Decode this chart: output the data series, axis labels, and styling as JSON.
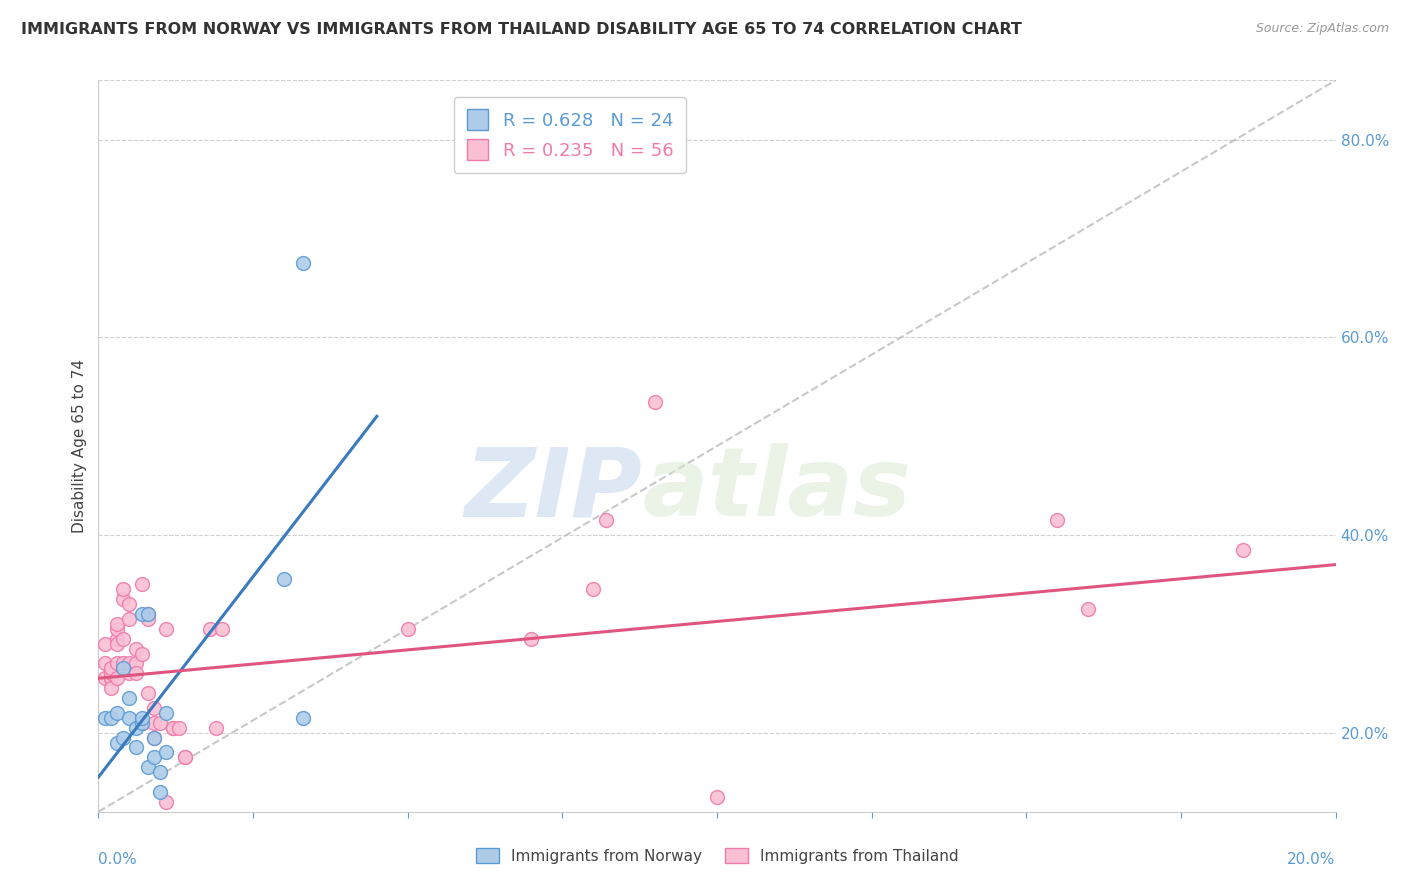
{
  "title": "IMMIGRANTS FROM NORWAY VS IMMIGRANTS FROM THAILAND DISABILITY AGE 65 TO 74 CORRELATION CHART",
  "source": "Source: ZipAtlas.com",
  "ylabel": "Disability Age 65 to 74",
  "watermark_zip": "ZIP",
  "watermark_atlas": "atlas",
  "legend_entries": [
    {
      "r_label": "R = 0.628",
      "n_label": "N = 24",
      "color": "#5b9bd5"
    },
    {
      "r_label": "R = 0.235",
      "n_label": "N = 56",
      "color": "#f07aab"
    }
  ],
  "bottom_legend": [
    "Immigrants from Norway",
    "Immigrants from Thailand"
  ],
  "xlim": [
    0.0,
    0.2
  ],
  "ylim": [
    0.12,
    0.86
  ],
  "xtick_count": 9,
  "yticks_right": [
    0.2,
    0.4,
    0.6,
    0.8
  ],
  "norway_color": "#aecce8",
  "thailand_color": "#f9c0d4",
  "norway_edge_color": "#5b9bd5",
  "thailand_edge_color": "#f07aab",
  "norway_scatter": [
    [
      0.001,
      0.215
    ],
    [
      0.002,
      0.215
    ],
    [
      0.003,
      0.22
    ],
    [
      0.003,
      0.19
    ],
    [
      0.004,
      0.265
    ],
    [
      0.004,
      0.195
    ],
    [
      0.005,
      0.215
    ],
    [
      0.005,
      0.235
    ],
    [
      0.006,
      0.185
    ],
    [
      0.006,
      0.205
    ],
    [
      0.007,
      0.21
    ],
    [
      0.007,
      0.215
    ],
    [
      0.007,
      0.32
    ],
    [
      0.008,
      0.32
    ],
    [
      0.008,
      0.165
    ],
    [
      0.009,
      0.175
    ],
    [
      0.009,
      0.195
    ],
    [
      0.01,
      0.16
    ],
    [
      0.01,
      0.14
    ],
    [
      0.011,
      0.18
    ],
    [
      0.011,
      0.22
    ],
    [
      0.03,
      0.355
    ],
    [
      0.033,
      0.675
    ],
    [
      0.033,
      0.215
    ]
  ],
  "thailand_scatter": [
    [
      0.001,
      0.255
    ],
    [
      0.001,
      0.27
    ],
    [
      0.001,
      0.29
    ],
    [
      0.002,
      0.26
    ],
    [
      0.002,
      0.255
    ],
    [
      0.002,
      0.255
    ],
    [
      0.002,
      0.245
    ],
    [
      0.002,
      0.26
    ],
    [
      0.002,
      0.265
    ],
    [
      0.003,
      0.255
    ],
    [
      0.003,
      0.27
    ],
    [
      0.003,
      0.295
    ],
    [
      0.003,
      0.305
    ],
    [
      0.003,
      0.31
    ],
    [
      0.003,
      0.29
    ],
    [
      0.004,
      0.335
    ],
    [
      0.004,
      0.345
    ],
    [
      0.004,
      0.295
    ],
    [
      0.004,
      0.27
    ],
    [
      0.005,
      0.315
    ],
    [
      0.005,
      0.33
    ],
    [
      0.005,
      0.26
    ],
    [
      0.005,
      0.27
    ],
    [
      0.006,
      0.27
    ],
    [
      0.006,
      0.285
    ],
    [
      0.006,
      0.26
    ],
    [
      0.007,
      0.35
    ],
    [
      0.007,
      0.28
    ],
    [
      0.007,
      0.21
    ],
    [
      0.007,
      0.21
    ],
    [
      0.008,
      0.32
    ],
    [
      0.008,
      0.315
    ],
    [
      0.008,
      0.24
    ],
    [
      0.009,
      0.195
    ],
    [
      0.009,
      0.225
    ],
    [
      0.009,
      0.21
    ],
    [
      0.01,
      0.21
    ],
    [
      0.011,
      0.305
    ],
    [
      0.011,
      0.13
    ],
    [
      0.012,
      0.205
    ],
    [
      0.012,
      0.205
    ],
    [
      0.013,
      0.205
    ],
    [
      0.014,
      0.175
    ],
    [
      0.014,
      0.175
    ],
    [
      0.018,
      0.305
    ],
    [
      0.019,
      0.205
    ],
    [
      0.02,
      0.305
    ],
    [
      0.05,
      0.305
    ],
    [
      0.07,
      0.295
    ],
    [
      0.08,
      0.345
    ],
    [
      0.082,
      0.415
    ],
    [
      0.09,
      0.535
    ],
    [
      0.1,
      0.135
    ],
    [
      0.155,
      0.415
    ],
    [
      0.16,
      0.325
    ],
    [
      0.185,
      0.385
    ]
  ],
  "norway_line": {
    "x0": 0.0,
    "y0": 0.155,
    "x1": 0.045,
    "y1": 0.52
  },
  "thailand_line": {
    "x0": 0.0,
    "y0": 0.255,
    "x1": 0.2,
    "y1": 0.37
  },
  "ref_line": {
    "x0": 0.0,
    "y0": 0.12,
    "x1": 0.2,
    "y1": 0.86
  },
  "grid_color": "#d0d0d0",
  "axis_color": "#5b9bd5",
  "background_color": "#ffffff",
  "title_fontsize": 11.5,
  "marker_size": 100
}
